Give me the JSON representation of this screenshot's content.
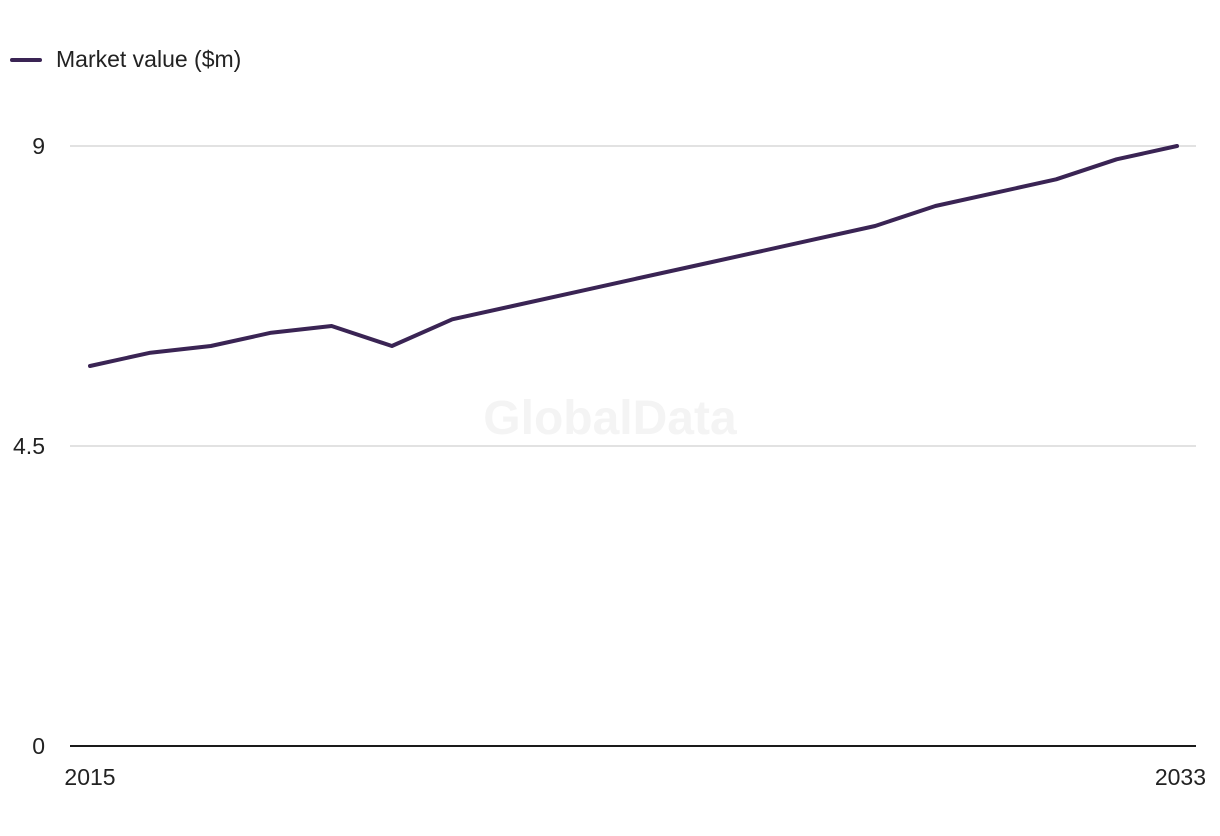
{
  "legend": {
    "label": "Market value ($m)"
  },
  "watermark": "GlobalData",
  "colors": {
    "series": "#3a2454",
    "grid": "#d9d9d9",
    "axis": "#1a1a1a",
    "watermark": "#f4f4f4"
  },
  "chart_data": {
    "type": "line",
    "title": "",
    "xlabel": "",
    "ylabel": "",
    "x": [
      2015,
      2016,
      2017,
      2018,
      2019,
      2020,
      2021,
      2022,
      2023,
      2024,
      2025,
      2026,
      2027,
      2028,
      2029,
      2030,
      2031,
      2032,
      2033
    ],
    "series": [
      {
        "name": "Market value ($m)",
        "values": [
          5.7,
          5.9,
          6.0,
          6.2,
          6.3,
          6.0,
          6.4,
          6.6,
          6.8,
          7.0,
          7.2,
          7.4,
          7.6,
          7.8,
          8.1,
          8.3,
          8.5,
          8.8,
          9.0
        ]
      }
    ],
    "ylim": [
      0,
      9
    ],
    "y_ticks": [
      "0",
      "4.5",
      "9"
    ],
    "x_tick_labels": [
      "2015",
      "2033"
    ],
    "grid": true,
    "legend": "top-left"
  }
}
